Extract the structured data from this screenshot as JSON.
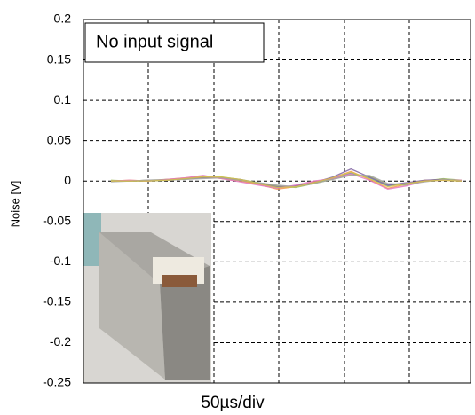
{
  "chart_data": {
    "type": "line",
    "annotation": "No input signal",
    "x_label": "50µs/div",
    "y_label": "Noise [V]",
    "ylim": [
      -0.25,
      0.2
    ],
    "yticks": [
      0.2,
      0.15,
      0.1,
      0.05,
      0,
      -0.05,
      -0.1,
      -0.15,
      -0.2,
      -0.25
    ],
    "grid": true,
    "series": [
      {
        "color": "#4f81bd",
        "values": [
          0,
          0,
          0,
          0.001,
          0.003,
          0.005,
          0.004,
          0.001,
          -0.003,
          -0.008,
          -0.006,
          -0.002,
          0.003,
          0.01,
          0.004,
          -0.006,
          -0.003,
          0,
          0.002,
          0
        ]
      },
      {
        "color": "#f79646",
        "values": [
          0,
          0.001,
          0,
          0.002,
          0.004,
          0.006,
          0.003,
          0,
          -0.004,
          -0.01,
          -0.007,
          -0.001,
          0.004,
          0.012,
          0.002,
          -0.009,
          -0.004,
          0.001,
          0.001,
          0
        ]
      },
      {
        "color": "#9bbb59",
        "values": [
          0.001,
          0,
          0.001,
          0.002,
          0.002,
          0.004,
          0.005,
          0.002,
          -0.002,
          -0.006,
          -0.008,
          -0.003,
          0.002,
          0.008,
          0.006,
          -0.004,
          -0.005,
          0,
          0.003,
          0.001
        ]
      },
      {
        "color": "#8064a2",
        "values": [
          0,
          0,
          0.001,
          0.001,
          0.003,
          0.004,
          0.004,
          0.002,
          -0.003,
          -0.007,
          -0.006,
          -0.002,
          0.005,
          0.015,
          0.005,
          -0.005,
          -0.002,
          0.001,
          0.002,
          0
        ]
      },
      {
        "color": "#e377c2",
        "values": [
          0,
          0.001,
          0,
          0.002,
          0.004,
          0.007,
          0.003,
          -0.001,
          -0.005,
          -0.009,
          -0.005,
          0,
          0.003,
          0.009,
          0.001,
          -0.01,
          -0.006,
          0,
          0.001,
          0.001
        ]
      },
      {
        "color": "#a5a5a5",
        "values": [
          -0.001,
          0,
          0.001,
          0.001,
          0.002,
          0.003,
          0.004,
          0.001,
          -0.002,
          -0.005,
          -0.007,
          -0.003,
          0.002,
          0.007,
          0.007,
          -0.003,
          -0.004,
          -0.001,
          0.002,
          0
        ]
      },
      {
        "color": "#d4c24a",
        "values": [
          0,
          0,
          0,
          0.001,
          0.003,
          0.005,
          0.005,
          0.002,
          -0.003,
          -0.008,
          -0.007,
          -0.002,
          0.004,
          0.011,
          0.003,
          -0.007,
          -0.003,
          0,
          0.001,
          0
        ]
      }
    ]
  }
}
